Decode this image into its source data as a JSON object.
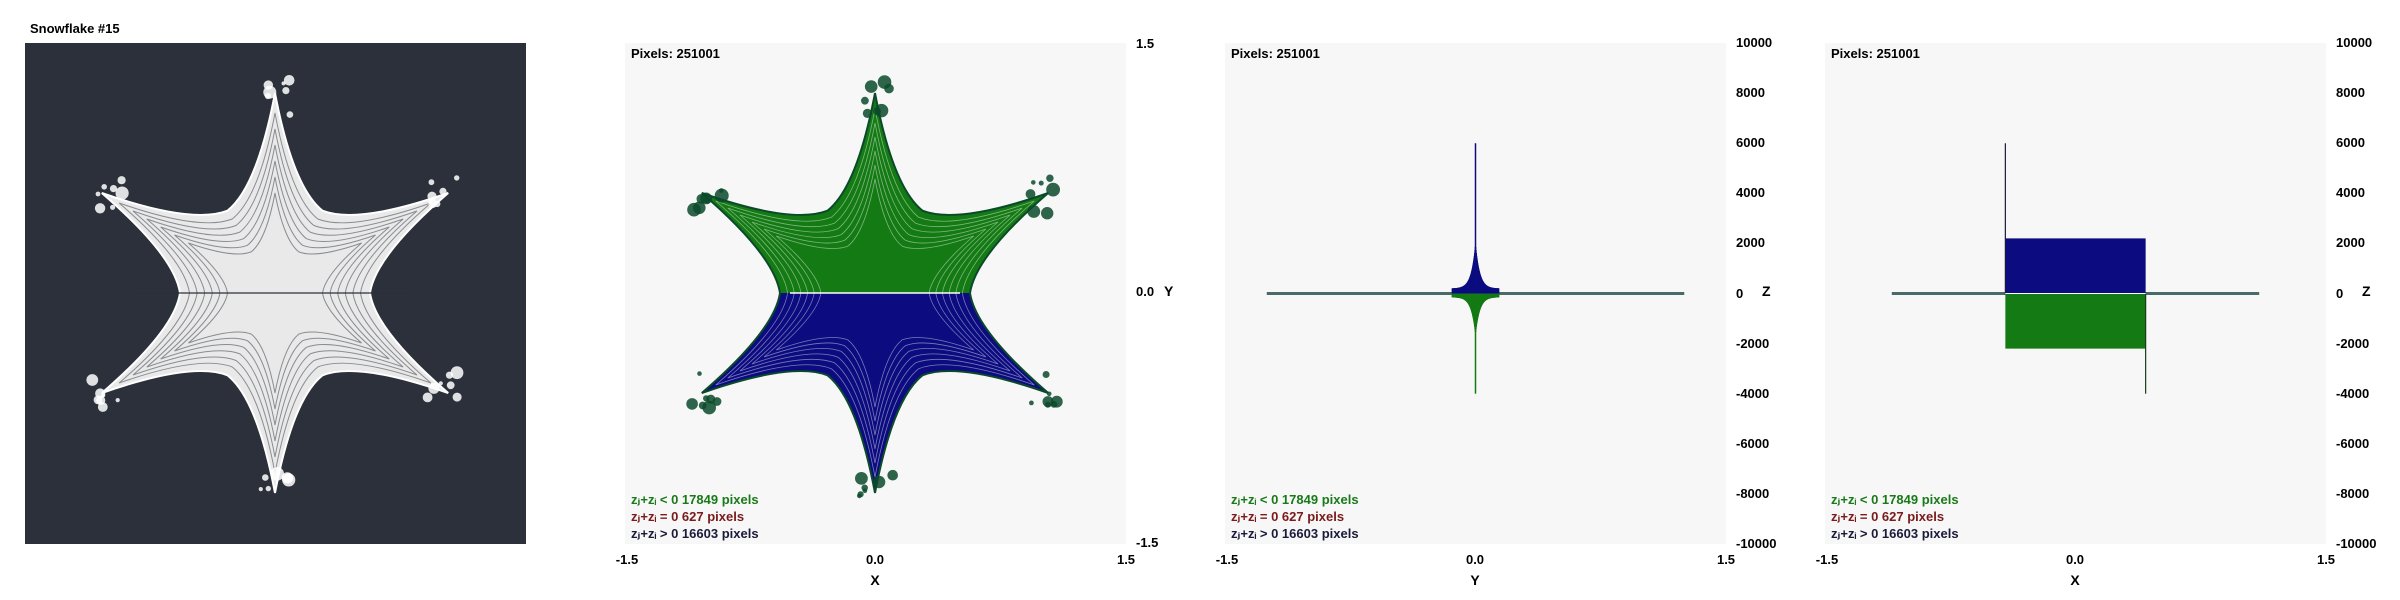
{
  "thumbnail": {
    "title": "Snowflake #15"
  },
  "colors": {
    "thumb_bg": "#2b303b",
    "panel_bg": "#f7f7f7",
    "white_fill": "#e9e9e9",
    "green": "#147a14",
    "blue": "#0c0c80",
    "dark_green": "#0a4a2a"
  },
  "legend": {
    "neg_label": "zⱼ+zᵢ < 0  17849 pixels",
    "zero_label": "zⱼ+zᵢ = 0  627 pixels",
    "pos_label": "zⱼ+zᵢ > 0  16603 pixels"
  },
  "chart_data": [
    {
      "type": "scatter",
      "pixels_label": "Pixels: 251001",
      "x_axis_name": "X",
      "y_axis_name": "Y",
      "xlim": [
        -1.5,
        1.5
      ],
      "ylim": [
        -1.5,
        1.5
      ],
      "x_ticks": [
        "-1.5",
        "0.0",
        "1.5"
      ],
      "y_ticks": [
        "1.5",
        "0.0",
        "-1.5"
      ],
      "series": [
        {
          "name": "zⱼ+zᵢ < 0",
          "count": 17849
        },
        {
          "name": "zⱼ+zᵢ = 0",
          "count": 627
        },
        {
          "name": "zⱼ+zᵢ > 0",
          "count": 16603
        }
      ]
    },
    {
      "type": "bar",
      "pixels_label": "Pixels: 251001",
      "x_axis_name": "Y",
      "z_axis_name": "Z",
      "xlim": [
        -1.5,
        1.5
      ],
      "zlim": [
        -10000,
        10000
      ],
      "x_ticks": [
        "-1.5",
        "0.0",
        "1.5"
      ],
      "z_ticks": [
        "10000",
        "8000",
        "6000",
        "4000",
        "2000",
        "0",
        "-2000",
        "-4000",
        "-6000",
        "-8000",
        "-10000"
      ],
      "peaks": {
        "positive_max": 6000,
        "negative_min": -4000,
        "x_range": [
          -1.25,
          1.25
        ]
      }
    },
    {
      "type": "bar",
      "pixels_label": "Pixels: 251001",
      "x_axis_name": "X",
      "z_axis_name": "Z",
      "xlim": [
        -1.5,
        1.5
      ],
      "zlim": [
        -10000,
        10000
      ],
      "x_ticks": [
        "-1.5",
        "0.0",
        "1.5"
      ],
      "z_ticks": [
        "10000",
        "8000",
        "6000",
        "4000",
        "2000",
        "0",
        "-2000",
        "-4000",
        "-6000",
        "-8000",
        "-10000"
      ],
      "plateau": {
        "x_range": [
          -0.42,
          0.42
        ],
        "positive": 2200,
        "negative": -2200
      },
      "spikes": {
        "left_x": -0.42,
        "left_value": 6000,
        "right_x": 0.42,
        "right_value": -4000
      },
      "x_range": [
        -1.1,
        1.1
      ]
    }
  ]
}
